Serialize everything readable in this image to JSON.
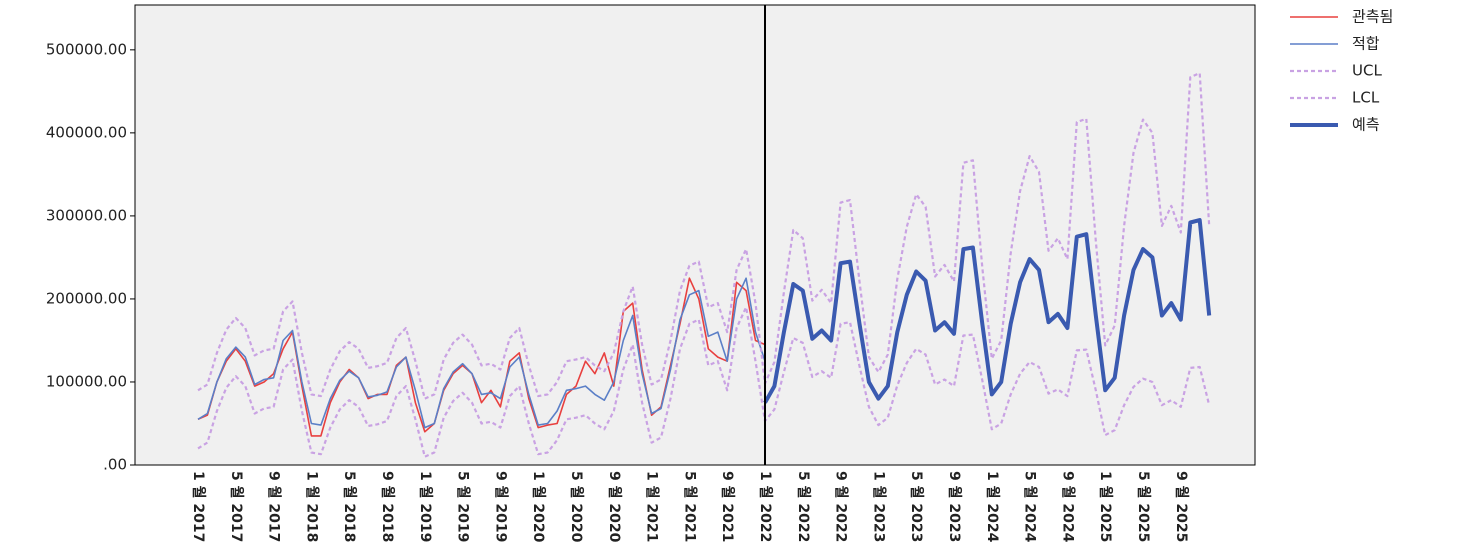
{
  "chart_data": {
    "type": "line",
    "categories": [
      "1 월 2017",
      null,
      null,
      null,
      "5 월 2017",
      null,
      null,
      null,
      "9 월 2017",
      null,
      null,
      null,
      "1 월 2018",
      null,
      null,
      null,
      "5 월 2018",
      null,
      null,
      null,
      "9 월 2018",
      null,
      null,
      null,
      "1 월 2019",
      null,
      null,
      null,
      "5 월 2019",
      null,
      null,
      null,
      "9 월 2019",
      null,
      null,
      null,
      "1 월 2020",
      null,
      null,
      null,
      "5 월 2020",
      null,
      null,
      null,
      "9 월 2020",
      null,
      null,
      null,
      "1 월 2021",
      null,
      null,
      null,
      "5 월 2021",
      null,
      null,
      null,
      "9 월 2021",
      null,
      null,
      null,
      "1 월 2022",
      null,
      null,
      null,
      "5 월 2022",
      null,
      null,
      null,
      "9 월 2022",
      null,
      null,
      null,
      "1 월 2023",
      null,
      null,
      null,
      "5 월 2023",
      null,
      null,
      null,
      "9 월 2023",
      null,
      null,
      null,
      "1 월 2024",
      null,
      null,
      null,
      "5 월 2024",
      null,
      null,
      null,
      "9 월 2024",
      null,
      null,
      null,
      "1 월 2025",
      null,
      null,
      null,
      "5 월 2025",
      null,
      null,
      null,
      "9 월 2025",
      null,
      null,
      null
    ],
    "series": [
      {
        "name": "관측됨",
        "color": "#e8403f",
        "line_style": "solid",
        "values": [
          55000,
          60000,
          100000,
          125000,
          140000,
          125000,
          95000,
          100000,
          110000,
          140000,
          160000,
          95000,
          35000,
          35000,
          75000,
          100000,
          115000,
          105000,
          80000,
          85000,
          85000,
          120000,
          130000,
          75000,
          40000,
          50000,
          90000,
          110000,
          120000,
          110000,
          75000,
          90000,
          70000,
          125000,
          135000,
          80000,
          45000,
          48000,
          50000,
          85000,
          95000,
          125000,
          110000,
          135000,
          95000,
          185000,
          195000,
          115000,
          60000,
          70000,
          120000,
          170000,
          225000,
          200000,
          140000,
          130000,
          125000,
          220000,
          210000,
          150000,
          145000,
          null,
          null,
          null,
          null,
          null,
          null,
          null,
          null,
          null,
          null,
          null,
          null,
          null,
          null,
          null,
          null,
          null,
          null,
          null,
          null,
          null,
          null,
          null,
          null,
          null,
          null,
          null,
          null,
          null,
          null,
          null,
          null,
          null,
          null,
          null,
          null,
          null,
          null,
          null,
          null,
          null,
          null,
          null,
          null,
          null,
          null,
          null
        ]
      },
      {
        "name": "적합",
        "color": "#5b7fc7",
        "line_style": "solid",
        "values": [
          55000,
          62000,
          100000,
          128000,
          142000,
          130000,
          97000,
          103000,
          105000,
          150000,
          162000,
          100000,
          50000,
          48000,
          80000,
          102000,
          113000,
          105000,
          82000,
          84000,
          88000,
          118000,
          130000,
          90000,
          45000,
          50000,
          92000,
          112000,
          122000,
          110000,
          85000,
          87000,
          80000,
          118000,
          130000,
          85000,
          48000,
          50000,
          65000,
          90000,
          92000,
          95000,
          85000,
          78000,
          100000,
          150000,
          180000,
          110000,
          62000,
          68000,
          115000,
          175000,
          205000,
          210000,
          155000,
          160000,
          125000,
          200000,
          225000,
          160000,
          125000,
          null,
          null,
          null,
          null,
          null,
          null,
          null,
          null,
          null,
          null,
          null,
          null,
          null,
          null,
          null,
          null,
          null,
          null,
          null,
          null,
          null,
          null,
          null,
          null,
          null,
          null,
          null,
          null,
          null,
          null,
          null,
          null,
          null,
          null,
          null,
          null,
          null,
          null,
          null,
          null,
          null,
          null,
          null,
          null,
          null,
          null,
          null
        ]
      },
      {
        "name": "UCL",
        "color": "#c9a2e3",
        "line_style": "dashed",
        "values": [
          90000,
          97000,
          135000,
          163000,
          177000,
          165000,
          132000,
          138000,
          140000,
          185000,
          197000,
          135000,
          85000,
          83000,
          115000,
          137000,
          148000,
          140000,
          117000,
          119000,
          123000,
          153000,
          165000,
          125000,
          80000,
          85000,
          127000,
          147000,
          157000,
          145000,
          120000,
          122000,
          115000,
          153000,
          165000,
          120000,
          83000,
          85000,
          100000,
          125000,
          127000,
          130000,
          120000,
          113000,
          135000,
          185000,
          215000,
          145000,
          97000,
          103000,
          150000,
          210000,
          240000,
          245000,
          190000,
          195000,
          160000,
          235000,
          260000,
          195000,
          98000,
          124000,
          208000,
          283000,
          273000,
          198000,
          211000,
          195000,
          316000,
          319000,
          221000,
          130000,
          112000,
          133000,
          224000,
          287000,
          326000,
          311000,
          227000,
          241000,
          221000,
          364000,
          367000,
          238000,
          128000,
          150000,
          255000,
          330000,
          372000,
          353000,
          258000,
          273000,
          248000,
          413000,
          417000,
          270000,
          144000,
          168000,
          288000,
          376000,
          416000,
          400000,
          288000,
          312000,
          280000,
          467000,
          472000,
          288000
        ]
      },
      {
        "name": "LCL",
        "color": "#c9a2e3",
        "line_style": "dashed",
        "values": [
          20000,
          27000,
          65000,
          93000,
          107000,
          95000,
          62000,
          68000,
          70000,
          115000,
          127000,
          65000,
          15000,
          13000,
          45000,
          67000,
          78000,
          70000,
          47000,
          49000,
          53000,
          83000,
          95000,
          55000,
          10000,
          15000,
          57000,
          77000,
          87000,
          75000,
          50000,
          52000,
          45000,
          83000,
          95000,
          50000,
          13000,
          15000,
          30000,
          55000,
          57000,
          60000,
          50000,
          43000,
          65000,
          115000,
          145000,
          75000,
          27000,
          33000,
          80000,
          140000,
          170000,
          175000,
          120000,
          125000,
          90000,
          165000,
          190000,
          125000,
          53000,
          67000,
          112000,
          153000,
          147000,
          106000,
          113000,
          105000,
          170000,
          172000,
          119000,
          70000,
          48000,
          57000,
          96000,
          123000,
          140000,
          133000,
          97000,
          103000,
          95000,
          156000,
          157000,
          102000,
          43000,
          50000,
          85000,
          110000,
          124000,
          118000,
          86000,
          91000,
          83000,
          138000,
          139000,
          90000,
          36000,
          42000,
          72000,
          94000,
          104000,
          100000,
          72000,
          78000,
          70000,
          117000,
          118000,
          72000
        ]
      },
      {
        "name": "예측",
        "color": "#3a5ab0",
        "line_style": "bold",
        "values": [
          null,
          null,
          null,
          null,
          null,
          null,
          null,
          null,
          null,
          null,
          null,
          null,
          null,
          null,
          null,
          null,
          null,
          null,
          null,
          null,
          null,
          null,
          null,
          null,
          null,
          null,
          null,
          null,
          null,
          null,
          null,
          null,
          null,
          null,
          null,
          null,
          null,
          null,
          null,
          null,
          null,
          null,
          null,
          null,
          null,
          null,
          null,
          null,
          null,
          null,
          null,
          null,
          null,
          null,
          null,
          null,
          null,
          null,
          null,
          null,
          75000,
          95000,
          160000,
          218000,
          210000,
          152000,
          162000,
          150000,
          243000,
          245000,
          170000,
          100000,
          80000,
          95000,
          160000,
          205000,
          233000,
          222000,
          162000,
          172000,
          158000,
          260000,
          262000,
          170000,
          85000,
          100000,
          170000,
          220000,
          248000,
          235000,
          172000,
          182000,
          165000,
          275000,
          278000,
          180000,
          90000,
          105000,
          180000,
          235000,
          260000,
          250000,
          180000,
          195000,
          175000,
          292000,
          295000,
          180000
        ]
      }
    ],
    "ylim": [
      0,
      554000
    ],
    "yticks": [
      {
        "value": 0,
        "label": ".00"
      },
      {
        "value": 100000,
        "label": "100000.00"
      },
      {
        "value": 200000,
        "label": "200000.00"
      },
      {
        "value": 300000,
        "label": "300000.00"
      },
      {
        "value": 400000,
        "label": "400000.00"
      },
      {
        "value": 500000,
        "label": "500000.00"
      }
    ],
    "grid": false,
    "legend": "right"
  }
}
